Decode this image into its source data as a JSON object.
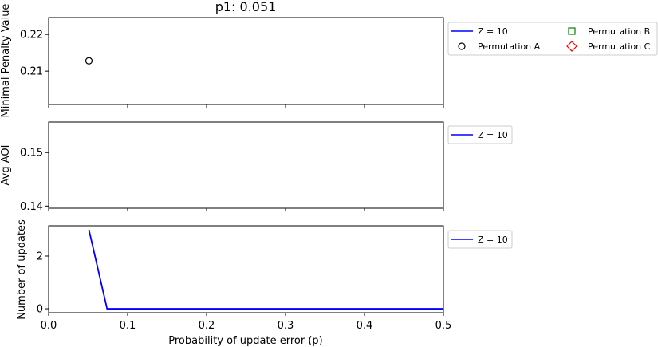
{
  "figure": {
    "title": "p1: 0.051",
    "xlabel": "Probability of update error (p)"
  },
  "colors": {
    "z10_line": "#0000ff",
    "permutation_a": "#000000",
    "permutation_b": "#008000",
    "permutation_c": "#ff0000"
  },
  "chart_data": [
    {
      "type": "line",
      "ylabel": "Minimal Penalty Value",
      "xlim": [
        0.0,
        0.5
      ],
      "ylim": [
        0.2009,
        0.2246
      ],
      "yticks": [
        0.21,
        0.22
      ],
      "grid": false,
      "legend": {
        "placement": "outside upper right, two columns",
        "entries": [
          {
            "label": "Z = 10",
            "marker": "line",
            "color": "#0000ff"
          },
          {
            "label": "Permutation A",
            "marker": "circle",
            "color": "#000000"
          },
          {
            "label": "Permutation B",
            "marker": "square",
            "color": "#008000"
          },
          {
            "label": "Permutation C",
            "marker": "diamond",
            "color": "#ff0000"
          }
        ]
      },
      "series": [
        {
          "name": "Z = 10",
          "x": [],
          "y": []
        },
        {
          "name": "Permutation A",
          "marker": "circle",
          "x": [
            0.051
          ],
          "y": [
            0.2128
          ]
        },
        {
          "name": "Permutation B",
          "marker": "square",
          "x": [],
          "y": []
        },
        {
          "name": "Permutation C",
          "marker": "diamond",
          "x": [],
          "y": []
        }
      ]
    },
    {
      "type": "line",
      "ylabel": "Avg AOI",
      "xlim": [
        0.0,
        0.5
      ],
      "ylim": [
        0.1396,
        0.1557
      ],
      "yticks": [
        0.14,
        0.15
      ],
      "grid": false,
      "legend": {
        "placement": "outside upper right",
        "entries": [
          {
            "label": "Z = 10",
            "marker": "line",
            "color": "#0000ff"
          }
        ]
      },
      "series": [
        {
          "name": "Z = 10",
          "x": [],
          "y": []
        }
      ]
    },
    {
      "type": "line",
      "ylabel": "Number of updates",
      "xlim": [
        0.0,
        0.5
      ],
      "ylim": [
        -0.15,
        3.15
      ],
      "xticks": [
        0.0,
        0.1,
        0.2,
        0.3,
        0.4,
        0.5
      ],
      "xtick_labels": [
        "0.0",
        "0.1",
        "0.2",
        "0.3",
        "0.4",
        "0.5"
      ],
      "yticks": [
        0,
        2
      ],
      "grid": false,
      "legend": {
        "placement": "outside upper right",
        "entries": [
          {
            "label": "Z = 10",
            "marker": "line",
            "color": "#0000ff"
          }
        ]
      },
      "series": [
        {
          "name": "Z = 10",
          "x": [
            0.051,
            0.074,
            0.5
          ],
          "y": [
            3,
            0,
            0
          ]
        }
      ]
    }
  ]
}
